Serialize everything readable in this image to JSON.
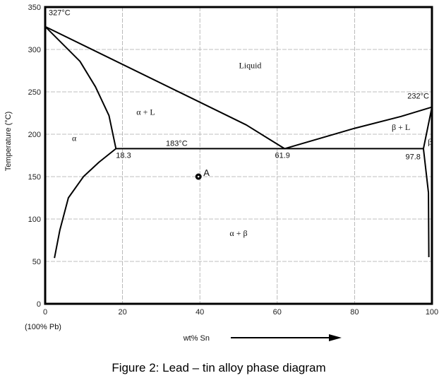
{
  "chart_data": {
    "type": "line",
    "title": "",
    "xlabel": "wt% Sn",
    "ylabel": "Temperature (°C)",
    "xlim": [
      0,
      100
    ],
    "ylim": [
      0,
      350
    ],
    "x_ticks": [
      "0",
      "20",
      "40",
      "60",
      "80",
      "100"
    ],
    "y_ticks": [
      "0",
      "50",
      "100",
      "150",
      "200",
      "250",
      "300",
      "350"
    ],
    "x_tick_values": [
      0,
      20,
      40,
      60,
      80,
      100
    ],
    "y_tick_values": [
      0,
      50,
      100,
      150,
      200,
      250,
      300,
      350
    ],
    "x_zero_note": "(100% Pb)",
    "grid": true,
    "series": [
      {
        "points": [
          [
            0,
            327
          ],
          [
            52,
            211
          ],
          [
            61.9,
            183
          ]
        ]
      },
      {
        "points": [
          [
            61.9,
            183
          ],
          [
            80,
            207
          ],
          [
            92,
            221
          ],
          [
            100,
            232
          ]
        ]
      },
      {
        "points": [
          [
            0,
            327
          ],
          [
            9,
            286
          ],
          [
            13,
            256
          ],
          [
            16.5,
            222
          ],
          [
            18.3,
            183
          ]
        ]
      },
      {
        "points": [
          [
            18.3,
            183
          ],
          [
            13.9,
            167
          ],
          [
            9.9,
            150
          ],
          [
            6,
            125
          ],
          [
            3.8,
            87
          ],
          [
            2.4,
            54
          ]
        ]
      },
      {
        "points": [
          [
            18.3,
            183
          ],
          [
            97.8,
            183
          ]
        ]
      },
      {
        "points": [
          [
            100,
            232
          ],
          [
            97.8,
            183
          ],
          [
            99.1,
            131
          ],
          [
            99.2,
            55
          ]
        ]
      }
    ],
    "annotations": [
      {
        "text": "327°C",
        "x": 0,
        "y": 327
      },
      {
        "text": "232°C",
        "x": 100,
        "y": 232
      },
      {
        "text": "183°C",
        "x": 34,
        "y": 183
      },
      {
        "text": "18.3",
        "x": 18.3,
        "y": 183
      },
      {
        "text": "61.9",
        "x": 61.9,
        "y": 183
      },
      {
        "text": "97.8",
        "x": 97.8,
        "y": 183
      }
    ],
    "regions": [
      {
        "text": "Liquid",
        "x": 53,
        "y": 278
      },
      {
        "text": "α + L",
        "x": 26,
        "y": 223
      },
      {
        "text": "α",
        "x": 7.5,
        "y": 192
      },
      {
        "text": "β + L",
        "x": 92,
        "y": 205
      },
      {
        "text": "β",
        "x": 99.5,
        "y": 188
      },
      {
        "text": "α + β",
        "x": 50,
        "y": 80
      }
    ],
    "point": {
      "label": "A",
      "x": 40,
      "y": 150
    }
  },
  "caption": "Figure 2: Lead – tin alloy phase diagram"
}
